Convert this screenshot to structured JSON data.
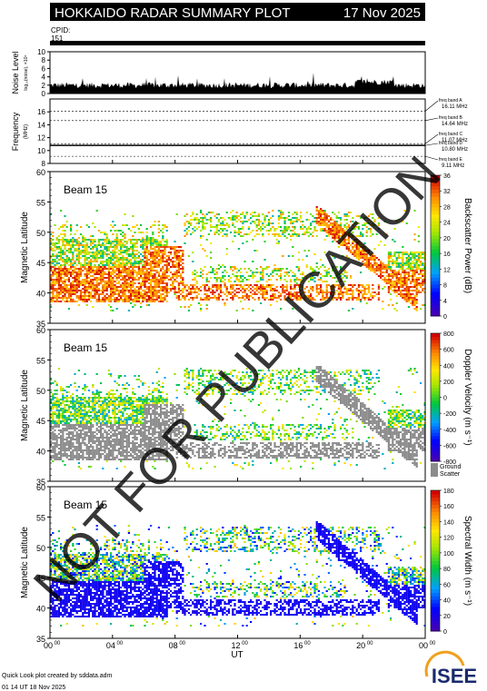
{
  "header": {
    "title": "HOKKAIDO RADAR SUMMARY PLOT",
    "date": "17 Nov 2025"
  },
  "cpid": {
    "label": "CPID:",
    "value": "151"
  },
  "chart_data": [
    {
      "type": "line",
      "panel": "noise",
      "ylabel": "Noise Level",
      "ylabel_small": "log₁₀(noise), ×10⁴",
      "ylim": [
        0,
        10
      ],
      "yticks": [
        "0",
        "2",
        "4",
        "6",
        "8",
        "10"
      ],
      "baseline_level": 2
    },
    {
      "type": "line",
      "panel": "frequency",
      "ylabel": "Frequency",
      "ylabel_units": "(MHz)",
      "ylim": [
        8,
        18
      ],
      "yticks": [
        "8",
        "10",
        "12",
        "14",
        "16"
      ],
      "bands": [
        {
          "label": "freq band A",
          "value_label": "16.11 MHz",
          "mhz": 16.11
        },
        {
          "label": "freq band B",
          "value_label": "14.64 MHz",
          "mhz": 14.64
        },
        {
          "label": "freq band C",
          "value_label": "11.07 MHz",
          "mhz": 11.07
        },
        {
          "label": "freq band D",
          "value_label": "10.80 MHz",
          "mhz": 10.8
        },
        {
          "label": "freq band E",
          "value_label": "9.11 MHz",
          "mhz": 9.11
        }
      ],
      "operating_frequency_mhz": 10.8
    },
    {
      "type": "heatmap",
      "panel": "power",
      "beam_label": "Beam 15",
      "ylabel": "Magnetic Latitude",
      "ylim": [
        35,
        60
      ],
      "yticks": [
        "35",
        "40",
        "45",
        "50",
        "55",
        "60"
      ],
      "colorbar_label": "Backscatter Power (dB)",
      "colorbar_range": [
        0,
        36
      ],
      "colorbar_ticks": [
        "0",
        "4",
        "8",
        "12",
        "16",
        "20",
        "24",
        "28",
        "32",
        "36"
      ]
    },
    {
      "type": "heatmap",
      "panel": "velocity",
      "beam_label": "Beam 15",
      "ylabel": "Magnetic Latitude",
      "ylim": [
        35,
        60
      ],
      "yticks": [
        "35",
        "40",
        "45",
        "50",
        "55",
        "60"
      ],
      "colorbar_label": "Doppler Velocity (m s⁻¹)",
      "colorbar_range": [
        -800,
        800
      ],
      "colorbar_ticks": [
        "-800",
        "-600",
        "-400",
        "-200",
        "0",
        "200",
        "400",
        "600",
        "800"
      ],
      "ground_scatter_label_1": "Ground",
      "ground_scatter_label_2": "Scatter"
    },
    {
      "type": "heatmap",
      "panel": "width",
      "beam_label": "Beam 15",
      "ylabel": "Magnetic Latitude",
      "ylim": [
        35,
        60
      ],
      "yticks": [
        "35",
        "40",
        "45",
        "50",
        "55",
        "60"
      ],
      "colorbar_label": "Spectral Width (m s⁻¹)",
      "colorbar_range": [
        0,
        180
      ],
      "colorbar_ticks": [
        "0",
        "20",
        "40",
        "60",
        "80",
        "100",
        "120",
        "140",
        "160",
        "180"
      ]
    }
  ],
  "time_axis": {
    "xlabel": "UT",
    "ticks": [
      {
        "hh": "00",
        "mm": "00",
        "hour": 0
      },
      {
        "hh": "04",
        "mm": "00",
        "hour": 4
      },
      {
        "hh": "08",
        "mm": "00",
        "hour": 8
      },
      {
        "hh": "12",
        "mm": "00",
        "hour": 12
      },
      {
        "hh": "16",
        "mm": "00",
        "hour": 16
      },
      {
        "hh": "20",
        "mm": "00",
        "hour": 20
      },
      {
        "hh": "00",
        "mm": "00",
        "hour": 24
      }
    ]
  },
  "footer": {
    "credit": "Quick Look plot created by sddata.adm",
    "created": "01 14 UT 18 Nov 2025",
    "logo_text": "ISEE"
  },
  "watermark": "NOT FOR PUBLICATION",
  "colors": {
    "header_bg": "#000000",
    "cpid_bar": "#0000ff",
    "ground_scatter": "#8c8c8c"
  }
}
